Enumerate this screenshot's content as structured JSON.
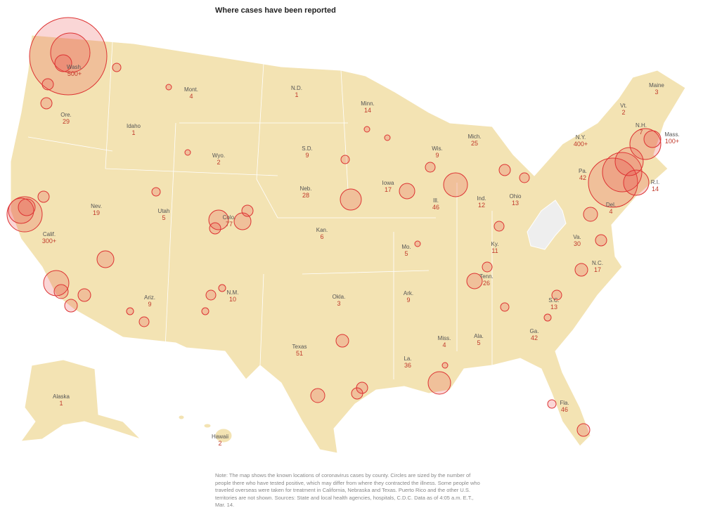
{
  "title": "Where cases have been reported",
  "states": [
    {
      "name": "Wash.",
      "count": "500+"
    },
    {
      "name": "Ore.",
      "count": "29"
    },
    {
      "name": "Idaho",
      "count": "1"
    },
    {
      "name": "Mont.",
      "count": "4"
    },
    {
      "name": "N.D.",
      "count": "1"
    },
    {
      "name": "Minn.",
      "count": "14"
    },
    {
      "name": "Wyo.",
      "count": "2"
    },
    {
      "name": "S.D.",
      "count": "9"
    },
    {
      "name": "Wis.",
      "count": "9"
    },
    {
      "name": "Mich.",
      "count": "25"
    },
    {
      "name": "N.Y.",
      "count": "400+"
    },
    {
      "name": "Vt.",
      "count": "2"
    },
    {
      "name": "N.H.",
      "count": "7"
    },
    {
      "name": "Maine",
      "count": "3"
    },
    {
      "name": "Mass.",
      "count": "100+"
    },
    {
      "name": "R.I.",
      "count": "14"
    },
    {
      "name": "Pa.",
      "count": "42"
    },
    {
      "name": "Del.",
      "count": "4"
    },
    {
      "name": "Ohio",
      "count": "13"
    },
    {
      "name": "Ind.",
      "count": "12"
    },
    {
      "name": "Ill.",
      "count": "46"
    },
    {
      "name": "Iowa",
      "count": "17"
    },
    {
      "name": "Neb.",
      "count": "28"
    },
    {
      "name": "Nev.",
      "count": "19"
    },
    {
      "name": "Utah",
      "count": "5"
    },
    {
      "name": "Colo.",
      "count": "77"
    },
    {
      "name": "Calif.",
      "count": "300+"
    },
    {
      "name": "Kan.",
      "count": "6"
    },
    {
      "name": "Mo.",
      "count": "5"
    },
    {
      "name": "Ky.",
      "count": "11"
    },
    {
      "name": "Va.",
      "count": "30"
    },
    {
      "name": "N.C.",
      "count": "17"
    },
    {
      "name": "Tenn.",
      "count": "26"
    },
    {
      "name": "S.C.",
      "count": "13"
    },
    {
      "name": "Ga.",
      "count": "42"
    },
    {
      "name": "Ala.",
      "count": "5"
    },
    {
      "name": "Miss.",
      "count": "4"
    },
    {
      "name": "Ark.",
      "count": "9"
    },
    {
      "name": "Okla.",
      "count": "3"
    },
    {
      "name": "Texas",
      "count": "51"
    },
    {
      "name": "N.M.",
      "count": "10"
    },
    {
      "name": "Ariz.",
      "count": "9"
    },
    {
      "name": "La.",
      "count": "36"
    },
    {
      "name": "Fla.",
      "count": "46"
    },
    {
      "name": "Alaska",
      "count": "1"
    },
    {
      "name": "Hawaii",
      "count": "2"
    }
  ],
  "note": "Note: The map shows the known locations of coronavirus cases by county. Circles are sized by the number of people there who have tested positive, which may differ from where they contracted the illness. Some people who traveled overseas were taken for treatment in California, Nebraska and Texas. Puerto Rico and the other U.S. territories are not shown. Sources: State and local health agencies, hospitals, C.D.C. Data as of 4:05 a.m. E.T., Mar. 14."
}
